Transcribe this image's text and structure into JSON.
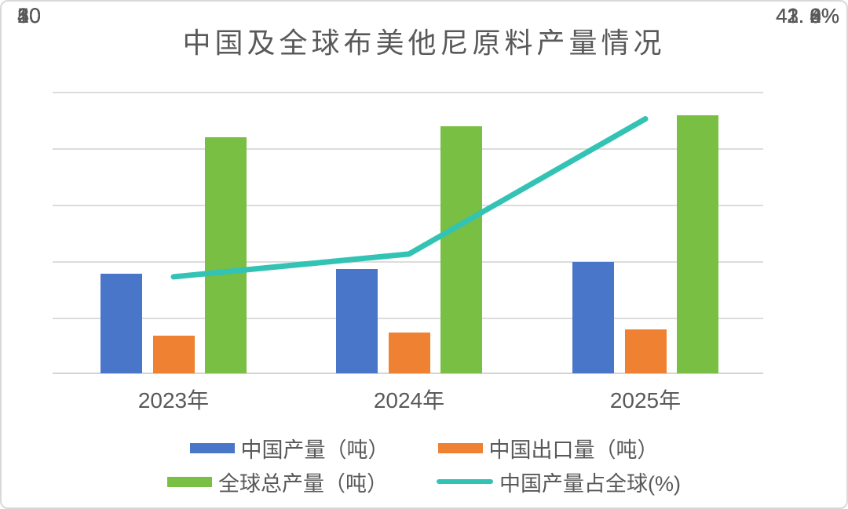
{
  "title": "中国及全球布美他尼原料产量情况",
  "colors": {
    "text": "#595959",
    "gridline": "#dcdcdc",
    "bar_blue": "#4a76c9",
    "bar_orange": "#ee8132",
    "bar_green": "#78bf43",
    "line_teal": "#33c3b5"
  },
  "axes": {
    "left": {
      "ticks": [
        "50",
        "40",
        "30",
        "20",
        "10",
        "0"
      ]
    },
    "right": {
      "ticks": [
        "43. 2%",
        "43. 0%",
        "42. 8%",
        "42. 6%",
        "42. 4%",
        "42. 2%",
        "42. 0%",
        "41. 8%",
        "41. 6%"
      ]
    }
  },
  "chart_data": {
    "type": "combo",
    "title": "中国及全球布美他尼原料产量情况",
    "categories": [
      "2023年",
      "2024年",
      "2025年"
    ],
    "series": [
      {
        "name": "中国产量（吨）",
        "type": "bar",
        "axis": "left",
        "color": "#4a76c9",
        "values": [
          17.7,
          18.6,
          19.8
        ]
      },
      {
        "name": "中国出口量（吨）",
        "type": "bar",
        "axis": "left",
        "color": "#ee8132",
        "values": [
          6.7,
          7.2,
          7.8
        ]
      },
      {
        "name": "全球总产量（吨）",
        "type": "bar",
        "axis": "left",
        "color": "#78bf43",
        "values": [
          42,
          44,
          46
        ]
      },
      {
        "name": "中国产量占全球(%)",
        "type": "line",
        "axis": "right",
        "color": "#33c3b5",
        "values": [
          42.15,
          42.28,
          43.05
        ]
      }
    ],
    "left_axis_range": [
      0,
      50
    ],
    "right_axis_range": [
      41.6,
      43.2
    ],
    "grid": true,
    "legend_position": "bottom"
  }
}
